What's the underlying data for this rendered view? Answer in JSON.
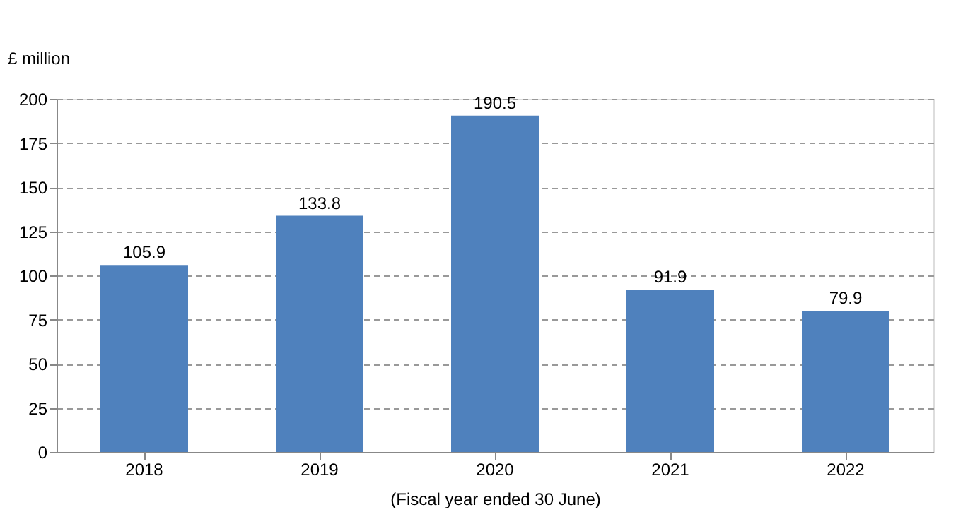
{
  "chart_data": {
    "type": "bar",
    "ylabel": "£ million",
    "xlabel": "(Fiscal year ended 30  June)",
    "categories": [
      "2018",
      "2019",
      "2020",
      "2021",
      "2022"
    ],
    "values": [
      105.9,
      133.8,
      190.5,
      91.9,
      79.9
    ],
    "color": "#4f81bd",
    "ylim": [
      0,
      200
    ],
    "yticks": [
      0,
      25,
      50,
      75,
      100,
      125,
      150,
      175,
      200
    ],
    "grid": "y",
    "data_labels": true
  }
}
